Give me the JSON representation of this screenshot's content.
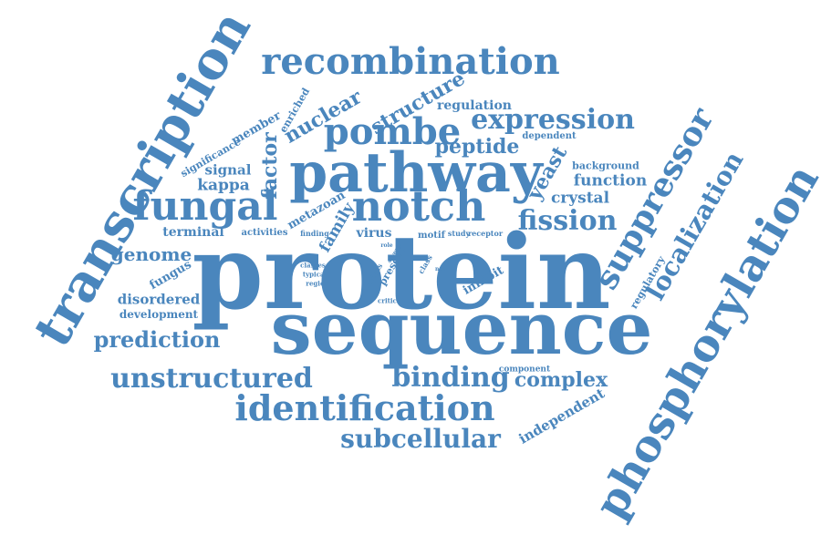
{
  "color": "#4a86bd",
  "words": [
    {
      "id": "protein",
      "text": "protein"
    },
    {
      "id": "sequence",
      "text": "sequence"
    },
    {
      "id": "pathway",
      "text": "pathway"
    },
    {
      "id": "transcription",
      "text": "transcription"
    },
    {
      "id": "phosphorylation",
      "text": "phosphorylation"
    },
    {
      "id": "recombination",
      "text": "recombination"
    },
    {
      "id": "notch",
      "text": "notch"
    },
    {
      "id": "fungal",
      "text": "fungal"
    },
    {
      "id": "suppressor",
      "text": "suppressor"
    },
    {
      "id": "pombe",
      "text": "pombe"
    },
    {
      "id": "expression",
      "text": "expression"
    },
    {
      "id": "fission",
      "text": "fission"
    },
    {
      "id": "identification",
      "text": "identification"
    },
    {
      "id": "unstructured",
      "text": "unstructured"
    },
    {
      "id": "binding",
      "text": "binding"
    },
    {
      "id": "subcellular",
      "text": "subcellular"
    },
    {
      "id": "localization",
      "text": "localization"
    },
    {
      "id": "prediction",
      "text": "prediction"
    },
    {
      "id": "complex",
      "text": "complex"
    },
    {
      "id": "structure",
      "text": "structure"
    },
    {
      "id": "nuclear",
      "text": "nuclear"
    },
    {
      "id": "peptide",
      "text": "peptide"
    },
    {
      "id": "function",
      "text": "function"
    },
    {
      "id": "crystal",
      "text": "crystal"
    },
    {
      "id": "genome",
      "text": "genome"
    },
    {
      "id": "factor",
      "text": "factor"
    },
    {
      "id": "yeast",
      "text": "yeast"
    },
    {
      "id": "kappa",
      "text": "kappa"
    },
    {
      "id": "signal",
      "text": "signal"
    },
    {
      "id": "disordered",
      "text": "disordered"
    },
    {
      "id": "development",
      "text": "development"
    },
    {
      "id": "independent",
      "text": "independent"
    },
    {
      "id": "regulation",
      "text": "regulation"
    },
    {
      "id": "background",
      "text": "background"
    },
    {
      "id": "dependent",
      "text": "dependent"
    },
    {
      "id": "metazoan",
      "text": "metazoan"
    },
    {
      "id": "family",
      "text": "family"
    },
    {
      "id": "fungus",
      "text": "fungus"
    },
    {
      "id": "terminal",
      "text": "terminal"
    },
    {
      "id": "virus",
      "text": "virus"
    },
    {
      "id": "motif",
      "text": "motif"
    },
    {
      "id": "member",
      "text": "member"
    },
    {
      "id": "enriched",
      "text": "enriched"
    },
    {
      "id": "significance",
      "text": "significance"
    },
    {
      "id": "activities",
      "text": "activities"
    },
    {
      "id": "finding",
      "text": "finding"
    },
    {
      "id": "study",
      "text": "study"
    },
    {
      "id": "receptor",
      "text": "receptor"
    },
    {
      "id": "inhibit",
      "text": "inhibit"
    },
    {
      "id": "regulatory",
      "text": "regulatory"
    },
    {
      "id": "component",
      "text": "component"
    },
    {
      "id": "classes",
      "text": "classes"
    },
    {
      "id": "typical",
      "text": "typical"
    },
    {
      "id": "region",
      "text": "region"
    },
    {
      "id": "hairless",
      "text": "hairless"
    },
    {
      "id": "present",
      "text": "present"
    },
    {
      "id": "class",
      "text": "class"
    },
    {
      "id": "novel",
      "text": "novel"
    },
    {
      "id": "role",
      "text": "role"
    },
    {
      "id": "several",
      "text": "several"
    },
    {
      "id": "critical",
      "text": "critical"
    }
  ]
}
